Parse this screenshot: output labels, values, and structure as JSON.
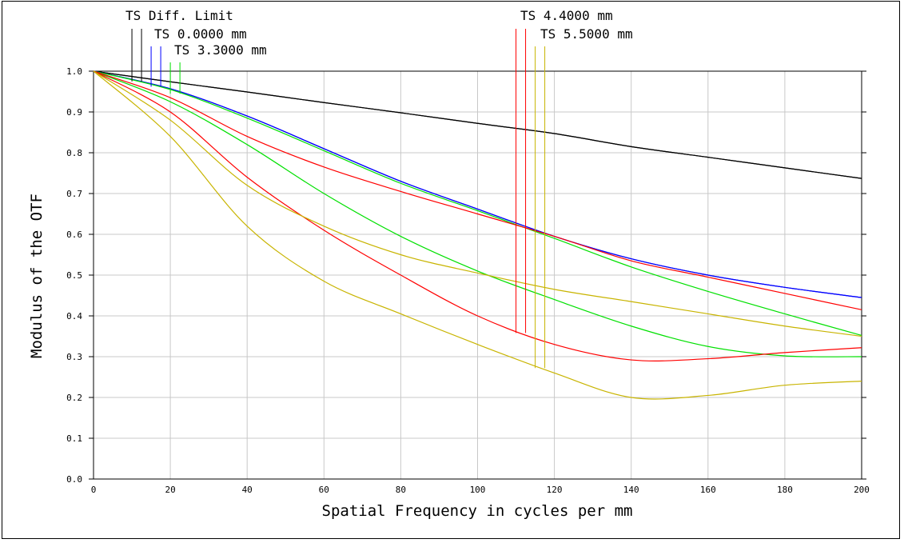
{
  "chart_data": {
    "type": "line",
    "title": "",
    "xlabel": "Spatial Frequency in cycles per mm",
    "ylabel": "Modulus of the OTF",
    "xlim": [
      0,
      200
    ],
    "ylim": [
      0,
      1.0
    ],
    "xticks": [
      "0",
      "20",
      "40",
      "60",
      "80",
      "100",
      "120",
      "140",
      "160",
      "180",
      "200"
    ],
    "yticks": [
      "0.0",
      "0.1",
      "0.2",
      "0.3",
      "0.4",
      "0.5",
      "0.6",
      "0.7",
      "0.8",
      "0.9",
      "1.0"
    ],
    "grid": true,
    "legend_labels": [
      "TS Diff. Limit",
      "TS 0.0000 mm",
      "TS 3.3000 mm",
      "TS 4.4000 mm",
      "TS 5.5000 mm"
    ],
    "series": [
      {
        "name": "TS Diff. Limit",
        "style": "tangential",
        "color": "#000000",
        "x": [
          0,
          20,
          40,
          60,
          80,
          100,
          120,
          140,
          160,
          180,
          200
        ],
        "y": [
          1.0,
          0.974,
          0.949,
          0.923,
          0.898,
          0.872,
          0.847,
          0.815,
          0.789,
          0.763,
          0.737
        ]
      },
      {
        "name": "TS Diff. Limit",
        "style": "sagittal",
        "color": "#000000",
        "x": [
          0,
          20,
          40,
          60,
          80,
          100,
          120,
          140,
          160,
          180,
          200
        ],
        "y": [
          1.0,
          0.974,
          0.949,
          0.923,
          0.898,
          0.872,
          0.847,
          0.815,
          0.789,
          0.763,
          0.737
        ]
      },
      {
        "name": "TS 0.0000 mm",
        "style": "tangential",
        "color": "#0000ff",
        "x": [
          0,
          20,
          40,
          60,
          80,
          100,
          120,
          140,
          160,
          180,
          200
        ],
        "y": [
          1.0,
          0.957,
          0.89,
          0.81,
          0.73,
          0.662,
          0.595,
          0.54,
          0.5,
          0.47,
          0.445
        ]
      },
      {
        "name": "TS 0.0000 mm",
        "style": "sagittal",
        "color": "#0000ff",
        "x": [
          0,
          20,
          40,
          60,
          80,
          100,
          120,
          140,
          160,
          180,
          200
        ],
        "y": [
          1.0,
          0.957,
          0.89,
          0.81,
          0.73,
          0.662,
          0.595,
          0.54,
          0.5,
          0.47,
          0.445
        ]
      },
      {
        "name": "TS 3.3000 mm",
        "style": "tangential",
        "color": "#00e000",
        "x": [
          0,
          20,
          40,
          60,
          80,
          100,
          120,
          140,
          160,
          180,
          200
        ],
        "y": [
          1.0,
          0.955,
          0.885,
          0.805,
          0.725,
          0.658,
          0.59,
          0.52,
          0.46,
          0.405,
          0.352
        ]
      },
      {
        "name": "TS 3.3000 mm",
        "style": "sagittal",
        "color": "#00e000",
        "x": [
          0,
          20,
          40,
          60,
          80,
          100,
          120,
          140,
          160,
          180,
          200
        ],
        "y": [
          1.0,
          0.925,
          0.82,
          0.7,
          0.595,
          0.51,
          0.44,
          0.375,
          0.325,
          0.302,
          0.3
        ]
      },
      {
        "name": "TS 4.4000 mm",
        "style": "tangential",
        "color": "#ff0000",
        "x": [
          0,
          20,
          40,
          60,
          80,
          100,
          120,
          140,
          160,
          180,
          200
        ],
        "y": [
          1.0,
          0.935,
          0.84,
          0.765,
          0.705,
          0.65,
          0.595,
          0.535,
          0.495,
          0.455,
          0.415
        ]
      },
      {
        "name": "TS 4.4000 mm",
        "style": "sagittal",
        "color": "#ff0000",
        "x": [
          0,
          20,
          40,
          60,
          80,
          100,
          120,
          140,
          160,
          180,
          200
        ],
        "y": [
          1.0,
          0.9,
          0.74,
          0.61,
          0.5,
          0.4,
          0.33,
          0.292,
          0.295,
          0.31,
          0.322
        ]
      },
      {
        "name": "TS 5.5000 mm",
        "style": "tangential",
        "color": "#c8b400",
        "x": [
          0,
          20,
          40,
          60,
          80,
          100,
          120,
          140,
          160,
          180,
          200
        ],
        "y": [
          1.0,
          0.88,
          0.72,
          0.62,
          0.55,
          0.505,
          0.465,
          0.435,
          0.405,
          0.375,
          0.35
        ]
      },
      {
        "name": "TS 5.5000 mm",
        "style": "sagittal",
        "color": "#c8b400",
        "x": [
          0,
          20,
          40,
          60,
          80,
          100,
          120,
          140,
          160,
          180,
          200
        ],
        "y": [
          1.0,
          0.84,
          0.62,
          0.485,
          0.405,
          0.33,
          0.26,
          0.2,
          0.205,
          0.23,
          0.24
        ]
      }
    ],
    "legend_markers": [
      {
        "label": "TS Diff. Limit",
        "color": "#000000",
        "x": [
          10,
          12.5
        ],
        "ybottom": 0.975
      },
      {
        "label": "TS 0.0000 mm",
        "color": "#0000ff",
        "x": [
          15,
          17.5
        ],
        "ybottom": 0.962
      },
      {
        "label": "TS 3.3000 mm",
        "color": "#00e000",
        "x": [
          20,
          22.5
        ],
        "ybottom": 0.945
      },
      {
        "label": "TS 4.4000 mm",
        "color": "#ff0000",
        "x": [
          110,
          112.5
        ],
        "ybottom": 0.358
      },
      {
        "label": "TS 5.5000 mm",
        "color": "#c8b400",
        "x": [
          115,
          117.5
        ],
        "ybottom": 0.272
      }
    ]
  }
}
